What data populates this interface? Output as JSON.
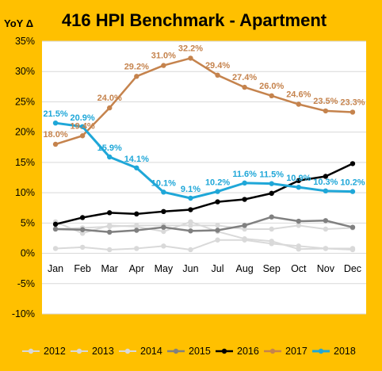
{
  "chart_data": {
    "type": "line",
    "title": "416 HPI Benchmark - Apartment",
    "ylabel": "YoY Δ",
    "xlabel": "",
    "categories": [
      "Jan",
      "Feb",
      "Mar",
      "Apr",
      "May",
      "Jun",
      "Jul",
      "Aug",
      "Sep",
      "Oct",
      "Nov",
      "Dec"
    ],
    "ylim": [
      -10,
      35
    ],
    "yticks": [
      -10,
      -5,
      0,
      5,
      10,
      15,
      20,
      25,
      30,
      35
    ],
    "ytick_labels": [
      "-10%",
      "-5%",
      "0%",
      "5%",
      "10%",
      "15%",
      "20%",
      "25%",
      "30%",
      "35%"
    ],
    "grid": true,
    "legend_position": "bottom",
    "series": [
      {
        "name": "2012",
        "color": "#D9D9D9",
        "width": 2,
        "values": [
          0.8,
          1.0,
          0.6,
          0.8,
          1.2,
          0.6,
          2.2,
          2.2,
          1.6,
          1.2,
          0.8,
          0.6
        ]
      },
      {
        "name": "2013",
        "color": "#D9D9D9",
        "width": 2,
        "values": [
          5.2,
          3.3,
          4.6,
          4.4,
          3.6,
          5.2,
          3.6,
          2.4,
          2.0,
          0.7,
          0.8,
          0.8
        ]
      },
      {
        "name": "2014",
        "color": "#D9D9D9",
        "width": 2,
        "values": [
          4.0,
          4.2,
          4.4,
          4.6,
          4.6,
          4.6,
          4.6,
          4.0,
          4.0,
          4.6,
          4.0,
          4.2
        ]
      },
      {
        "name": "2015",
        "color": "#808080",
        "width": 2.5,
        "values": [
          4.0,
          3.9,
          3.5,
          3.8,
          4.3,
          3.7,
          3.8,
          4.6,
          6.0,
          5.3,
          5.4,
          4.3
        ]
      },
      {
        "name": "2016",
        "color": "#000000",
        "width": 2.5,
        "values": [
          4.8,
          5.9,
          6.7,
          6.5,
          6.9,
          7.2,
          8.5,
          8.9,
          9.9,
          12.0,
          12.7,
          14.8
        ]
      },
      {
        "name": "2017",
        "color": "#C5834D",
        "width": 2.5,
        "values": [
          18.0,
          19.4,
          24.0,
          29.2,
          31.0,
          32.2,
          29.4,
          27.4,
          26.0,
          24.6,
          23.5,
          23.3
        ],
        "labels": [
          "18.0%",
          "19.4%",
          "24.0%",
          "29.2%",
          "31.0%",
          "32.2%",
          "29.4%",
          "27.4%",
          "26.0%",
          "24.6%",
          "23.5%",
          "23.3%"
        ]
      },
      {
        "name": "2018",
        "color": "#1FA7D8",
        "width": 3,
        "values": [
          21.5,
          20.9,
          15.9,
          14.1,
          10.1,
          9.1,
          10.2,
          11.6,
          11.5,
          10.9,
          10.3,
          10.2
        ],
        "labels": [
          "21.5%",
          "20.9%",
          "15.9%",
          "14.1%",
          "10.1%",
          "9.1%",
          "10.2%",
          "11.6%",
          "11.5%",
          "10.9%",
          "10.3%",
          "10.2%"
        ]
      }
    ]
  }
}
